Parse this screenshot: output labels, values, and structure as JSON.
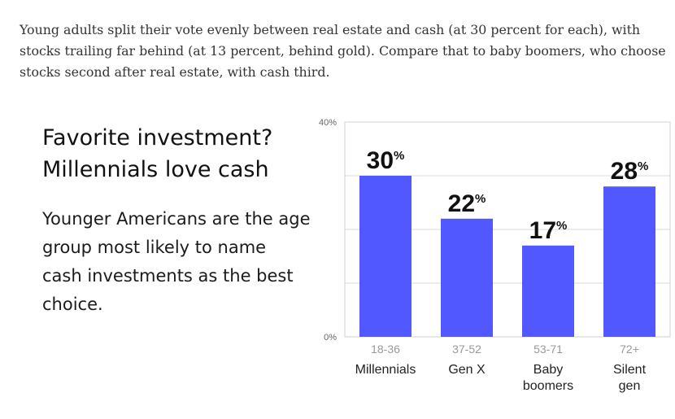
{
  "intro": "Young adults split their vote evenly between real estate and cash (at 30 percent for each), with stocks trailing far behind (at 13 percent, behind gold). Compare that to baby boomers, who choose stocks second after real estate, with cash third.",
  "headline": [
    "Favorite investment?",
    "Millennials love cash"
  ],
  "subtext": "Younger Americans are the age group most likely to name cash investments as the best choice.",
  "chart_data": {
    "type": "bar",
    "categories": [
      "Millennials",
      "Gen X",
      "Baby boomers",
      "Silent gen"
    ],
    "category_lines": [
      [
        "Millennials"
      ],
      [
        "Gen X"
      ],
      [
        "Baby",
        "boomers"
      ],
      [
        "Silent",
        "gen"
      ]
    ],
    "age_ranges": [
      "18-36",
      "37-52",
      "53-71",
      "72+"
    ],
    "values": [
      30,
      22,
      17,
      28
    ],
    "value_suffix": "%",
    "ylim": [
      0,
      40
    ],
    "ytick_labels": [
      "0%",
      "40%"
    ],
    "grid": true,
    "bar_color": "#5158ff"
  }
}
